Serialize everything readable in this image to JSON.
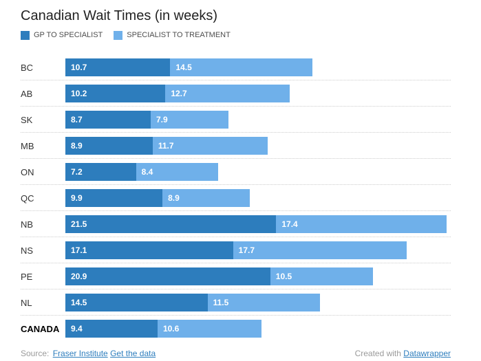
{
  "title": "Canadian Wait Times (in weeks)",
  "chart_data": {
    "type": "bar",
    "orientation": "horizontal",
    "stacked": true,
    "title": "Canadian Wait Times (in weeks)",
    "xlabel": "",
    "ylabel": "",
    "unit": "weeks",
    "xlim": [
      0,
      39.3
    ],
    "grid": false,
    "value_labels": true,
    "legend_position": "top-left",
    "emphasized_category": "CANADA",
    "categories": [
      "BC",
      "AB",
      "SK",
      "MB",
      "ON",
      "QC",
      "NB",
      "NS",
      "PE",
      "NL",
      "CANADA"
    ],
    "series": [
      {
        "name": "GP TO SPECIALIST",
        "color": "#2d7dbd",
        "values": [
          10.7,
          10.2,
          8.7,
          8.9,
          7.2,
          9.9,
          21.5,
          17.1,
          20.9,
          14.5,
          9.4
        ]
      },
      {
        "name": "SPECIALIST TO TREATMENT",
        "color": "#6fb0ea",
        "values": [
          14.5,
          12.7,
          7.9,
          11.7,
          8.4,
          8.9,
          17.4,
          17.7,
          10.5,
          11.5,
          10.6
        ]
      }
    ]
  },
  "colors": {
    "series_dark": "#2d7dbd",
    "series_light": "#6fb0ea",
    "separator": "#cccccc",
    "value_label": "#ffffff",
    "link": "#2d7dbd",
    "footer_text": "#9a9a9a"
  },
  "footer": {
    "source_prefix": "Source:",
    "source_link": "Fraser Institute",
    "data_link": "Get the data",
    "credit_prefix": "Created with",
    "credit_link": "Datawrapper"
  }
}
